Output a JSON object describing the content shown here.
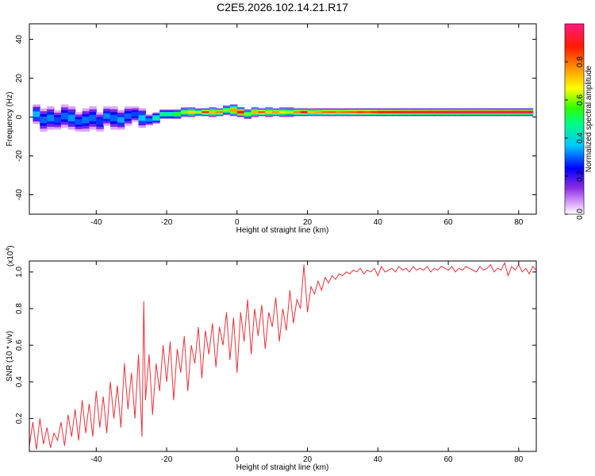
{
  "page_title": "C2E5.2026.102.14.21.R17",
  "chart_data": [
    {
      "type": "heatmap",
      "title": "C2E5.2026.102.14.21.R17",
      "xlabel": "Height of straight line (km)",
      "ylabel": "Frequency (Hz)",
      "xlim": [
        -59,
        85
      ],
      "ylim": [
        -50,
        48
      ],
      "xticks": [
        -40,
        -20,
        0,
        20,
        40,
        60,
        80
      ],
      "xtick_labels": [
        "-40",
        "-20",
        "0",
        "20",
        "40",
        "60",
        "80"
      ],
      "yticks": [
        -40,
        -20,
        0,
        20,
        40
      ],
      "ytick_labels": [
        "-40",
        "-20",
        "0",
        "20",
        "40"
      ],
      "colorbar": {
        "label": "Normalized spectral amplitude",
        "range": [
          0,
          1
        ],
        "ticks": [
          0.0,
          0.2,
          0.4,
          0.6,
          0.8
        ],
        "tick_labels": [
          "0.0",
          "0.2",
          "0.4",
          "0.6",
          "0.8"
        ]
      },
      "band_center_freq": 1.5,
      "x": [
        -57,
        -55,
        -53,
        -51,
        -49,
        -47,
        -45,
        -43,
        -41,
        -39,
        -37,
        -35,
        -33,
        -31,
        -29,
        -27,
        -25,
        -23,
        -21,
        -19,
        -17,
        -15,
        -13,
        -11,
        -9,
        -7,
        -5,
        -3,
        -1,
        1,
        3,
        5,
        7,
        9,
        11,
        13,
        15,
        17,
        19,
        21,
        23,
        25,
        27,
        29,
        31,
        33,
        35,
        37,
        39,
        41,
        43,
        45,
        47,
        49,
        51,
        53,
        55,
        57,
        59,
        61,
        63,
        65,
        67,
        69,
        71,
        73,
        75,
        77,
        79,
        81,
        83
      ],
      "amplitude": [
        0.35,
        0.3,
        0.32,
        0.28,
        0.3,
        0.33,
        0.29,
        0.31,
        0.3,
        0.27,
        0.32,
        0.3,
        0.34,
        0.3,
        0.28,
        0.36,
        0.32,
        0.45,
        0.5,
        0.48,
        0.55,
        0.6,
        0.7,
        0.62,
        0.85,
        0.72,
        0.78,
        0.6,
        0.75,
        0.9,
        0.6,
        0.72,
        0.82,
        0.7,
        0.76,
        0.68,
        0.62,
        0.78,
        0.88,
        0.72,
        0.75,
        0.8,
        0.82,
        0.78,
        0.8,
        0.82,
        0.85,
        0.83,
        0.86,
        0.9,
        0.88,
        0.9,
        0.92,
        0.91,
        0.93,
        0.92,
        0.94,
        0.93,
        0.94,
        0.95,
        0.94,
        0.95,
        0.95,
        0.96,
        0.95,
        0.96,
        0.96,
        0.95,
        0.96,
        0.96,
        0.95
      ],
      "spread": [
        5,
        6,
        6,
        5,
        6,
        6,
        5,
        6,
        6,
        5,
        5,
        6,
        5,
        5,
        4,
        5,
        3,
        3,
        2.5,
        2.5,
        2.5,
        2.5,
        2.5,
        2,
        2,
        2.5,
        2,
        2.5,
        3,
        2.5,
        2.5,
        2.5,
        2,
        2.5,
        2,
        2.5,
        2.5,
        2,
        2,
        2,
        2,
        2,
        2,
        2,
        2,
        2,
        2,
        2,
        2,
        2,
        2,
        2,
        2,
        2,
        2,
        2,
        2,
        2,
        2,
        2,
        2,
        2,
        2,
        2,
        2,
        2,
        2,
        2,
        2,
        2,
        2
      ],
      "offset": [
        0,
        -3,
        -2,
        -3,
        -1,
        -2,
        -4,
        -3,
        -2,
        -4,
        -1,
        -2,
        -3,
        -1,
        0,
        -2,
        -3,
        -2,
        0,
        0,
        0,
        1,
        1,
        1,
        1,
        1,
        1,
        2,
        2,
        1,
        0,
        1,
        1,
        1,
        1,
        1,
        1,
        1,
        1,
        1,
        1,
        1,
        1,
        1,
        1,
        1,
        1,
        1,
        1,
        1,
        1,
        1,
        1,
        1,
        1,
        1,
        1,
        1,
        1,
        1,
        1,
        1,
        1,
        1,
        1,
        1,
        1,
        1,
        1,
        1,
        1
      ]
    },
    {
      "type": "line",
      "title": "",
      "xlabel": "Height of straight line (km)",
      "ylabel": "SNR (10 * v/v)",
      "scale_label_base": "(x10",
      "scale_label_exp": "4",
      "scale_label_close": ")",
      "xlim": [
        -59,
        85
      ],
      "ylim": [
        0.02,
        1.06
      ],
      "xticks": [
        -40,
        -20,
        0,
        20,
        40,
        60,
        80
      ],
      "xtick_labels": [
        "-40",
        "-20",
        "0",
        "20",
        "40",
        "60",
        "80"
      ],
      "yticks": [
        0.2,
        0.4,
        0.6,
        0.8,
        1.0
      ],
      "ytick_labels": [
        "0.2",
        "0.4",
        "0.6",
        "0.8",
        "1.0"
      ],
      "line_color": "#e8323c",
      "series": [
        {
          "name": "SNR",
          "x": [
            -59,
            -58,
            -57,
            -56,
            -55,
            -54,
            -53,
            -52,
            -51,
            -50,
            -49,
            -48,
            -47,
            -46,
            -45,
            -44,
            -43,
            -42,
            -41,
            -40,
            -39,
            -38,
            -37,
            -36,
            -35,
            -34,
            -33,
            -32,
            -31,
            -30,
            -29,
            -28,
            -27,
            -26.5,
            -26,
            -25,
            -24,
            -23,
            -22,
            -21,
            -20,
            -19,
            -18,
            -17,
            -16,
            -15,
            -14,
            -13,
            -12,
            -11,
            -10,
            -9,
            -8,
            -7,
            -6,
            -5,
            -4,
            -3,
            -2,
            -1,
            0,
            1,
            2,
            3,
            4,
            5,
            6,
            7,
            8,
            9,
            10,
            11,
            12,
            13,
            14,
            15,
            16,
            17,
            18,
            19,
            20,
            21,
            22,
            23,
            24,
            25,
            26,
            27,
            28,
            29,
            30,
            31,
            32,
            33,
            34,
            35,
            36,
            37,
            38,
            39,
            40,
            41,
            42,
            43,
            44,
            45,
            46,
            47,
            48,
            49,
            50,
            51,
            52,
            53,
            54,
            55,
            56,
            57,
            58,
            59,
            60,
            61,
            62,
            63,
            64,
            65,
            66,
            67,
            68,
            69,
            70,
            71,
            72,
            73,
            74,
            75,
            76,
            77,
            78,
            79,
            80,
            81,
            82,
            83,
            84,
            85
          ],
          "values": [
            0.05,
            0.18,
            0.03,
            0.2,
            0.06,
            0.15,
            0.04,
            0.12,
            0.08,
            0.18,
            0.05,
            0.22,
            0.1,
            0.25,
            0.08,
            0.3,
            0.12,
            0.28,
            0.1,
            0.35,
            0.15,
            0.32,
            0.12,
            0.4,
            0.2,
            0.38,
            0.15,
            0.5,
            0.25,
            0.45,
            0.2,
            0.55,
            0.1,
            0.84,
            0.3,
            0.55,
            0.22,
            0.5,
            0.35,
            0.6,
            0.4,
            0.62,
            0.3,
            0.58,
            0.45,
            0.65,
            0.35,
            0.6,
            0.5,
            0.7,
            0.42,
            0.68,
            0.55,
            0.72,
            0.48,
            0.7,
            0.6,
            0.78,
            0.52,
            0.75,
            0.45,
            0.78,
            0.62,
            0.85,
            0.55,
            0.8,
            0.65,
            0.82,
            0.58,
            0.78,
            0.7,
            0.86,
            0.62,
            0.8,
            0.68,
            0.9,
            0.72,
            0.85,
            0.8,
            1.04,
            0.78,
            0.92,
            0.88,
            0.95,
            0.9,
            0.97,
            0.94,
            0.98,
            0.96,
            0.99,
            0.98,
            1.0,
            0.99,
            1.01,
            1.0,
            1.02,
            0.99,
            1.01,
            1.0,
            1.02,
            0.98,
            1.03,
            1.0,
            1.01,
            1.02,
            1.0,
            1.03,
            1.01,
            1.02,
            1.0,
            1.03,
            1.01,
            1.02,
            1.01,
            1.03,
            1.0,
            1.02,
            1.01,
            1.03,
            1.02,
            1.01,
            1.03,
            1.0,
            1.02,
            1.01,
            1.03,
            1.02,
            1.01,
            1.0,
            1.03,
            1.01,
            1.02,
            1.04,
            1.0,
            1.02,
            1.01,
            1.05,
            0.98,
            1.03,
            1.01,
            1.04,
            1.0,
            1.02,
            0.99,
            1.03,
            1.01
          ]
        }
      ]
    }
  ]
}
